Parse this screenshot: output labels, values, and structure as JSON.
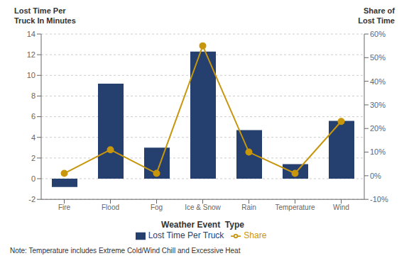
{
  "chart_data": {
    "type": "bar",
    "categories": [
      "Fire",
      "Flood",
      "Fog",
      "Ice & Snow",
      "Rain",
      "Temperature",
      "Wind"
    ],
    "series": [
      {
        "name": "Lost Time Per Truck",
        "type": "bar",
        "color": "#253f6e",
        "values": [
          -0.8,
          9.2,
          3.0,
          12.3,
          4.7,
          1.4,
          5.6
        ]
      },
      {
        "name": "Share",
        "type": "line",
        "axis": "y2",
        "color": "#c8960c",
        "marker": "circle",
        "values": [
          0.01,
          0.11,
          0.01,
          0.55,
          0.1,
          0.01,
          0.23
        ]
      }
    ],
    "x_label": "Weather Event  Type",
    "y_label": "Lost Time Per\nTruck In Minutes",
    "y2_label": "Share of\nLost Time",
    "ylim": [
      -2,
      14
    ],
    "yticks": [
      -2,
      0,
      2,
      4,
      6,
      8,
      10,
      12,
      14
    ],
    "y2lim": [
      -0.1,
      0.6
    ],
    "y2ticks": [
      {
        "value": -0.1,
        "label": "-10%"
      },
      {
        "value": 0.0,
        "label": "0%"
      },
      {
        "value": 0.1,
        "label": "10%"
      },
      {
        "value": 0.2,
        "label": "20%"
      },
      {
        "value": 0.3,
        "label": "30%"
      },
      {
        "value": 0.4,
        "label": "40%"
      },
      {
        "value": 0.5,
        "label": "50%"
      },
      {
        "value": 0.6,
        "label": "60%"
      }
    ],
    "grid": true,
    "legend": "bottom",
    "annotations": [
      "Note: Temperature includes Extreme Cold/Wind Chill and Excessive Heat"
    ]
  }
}
